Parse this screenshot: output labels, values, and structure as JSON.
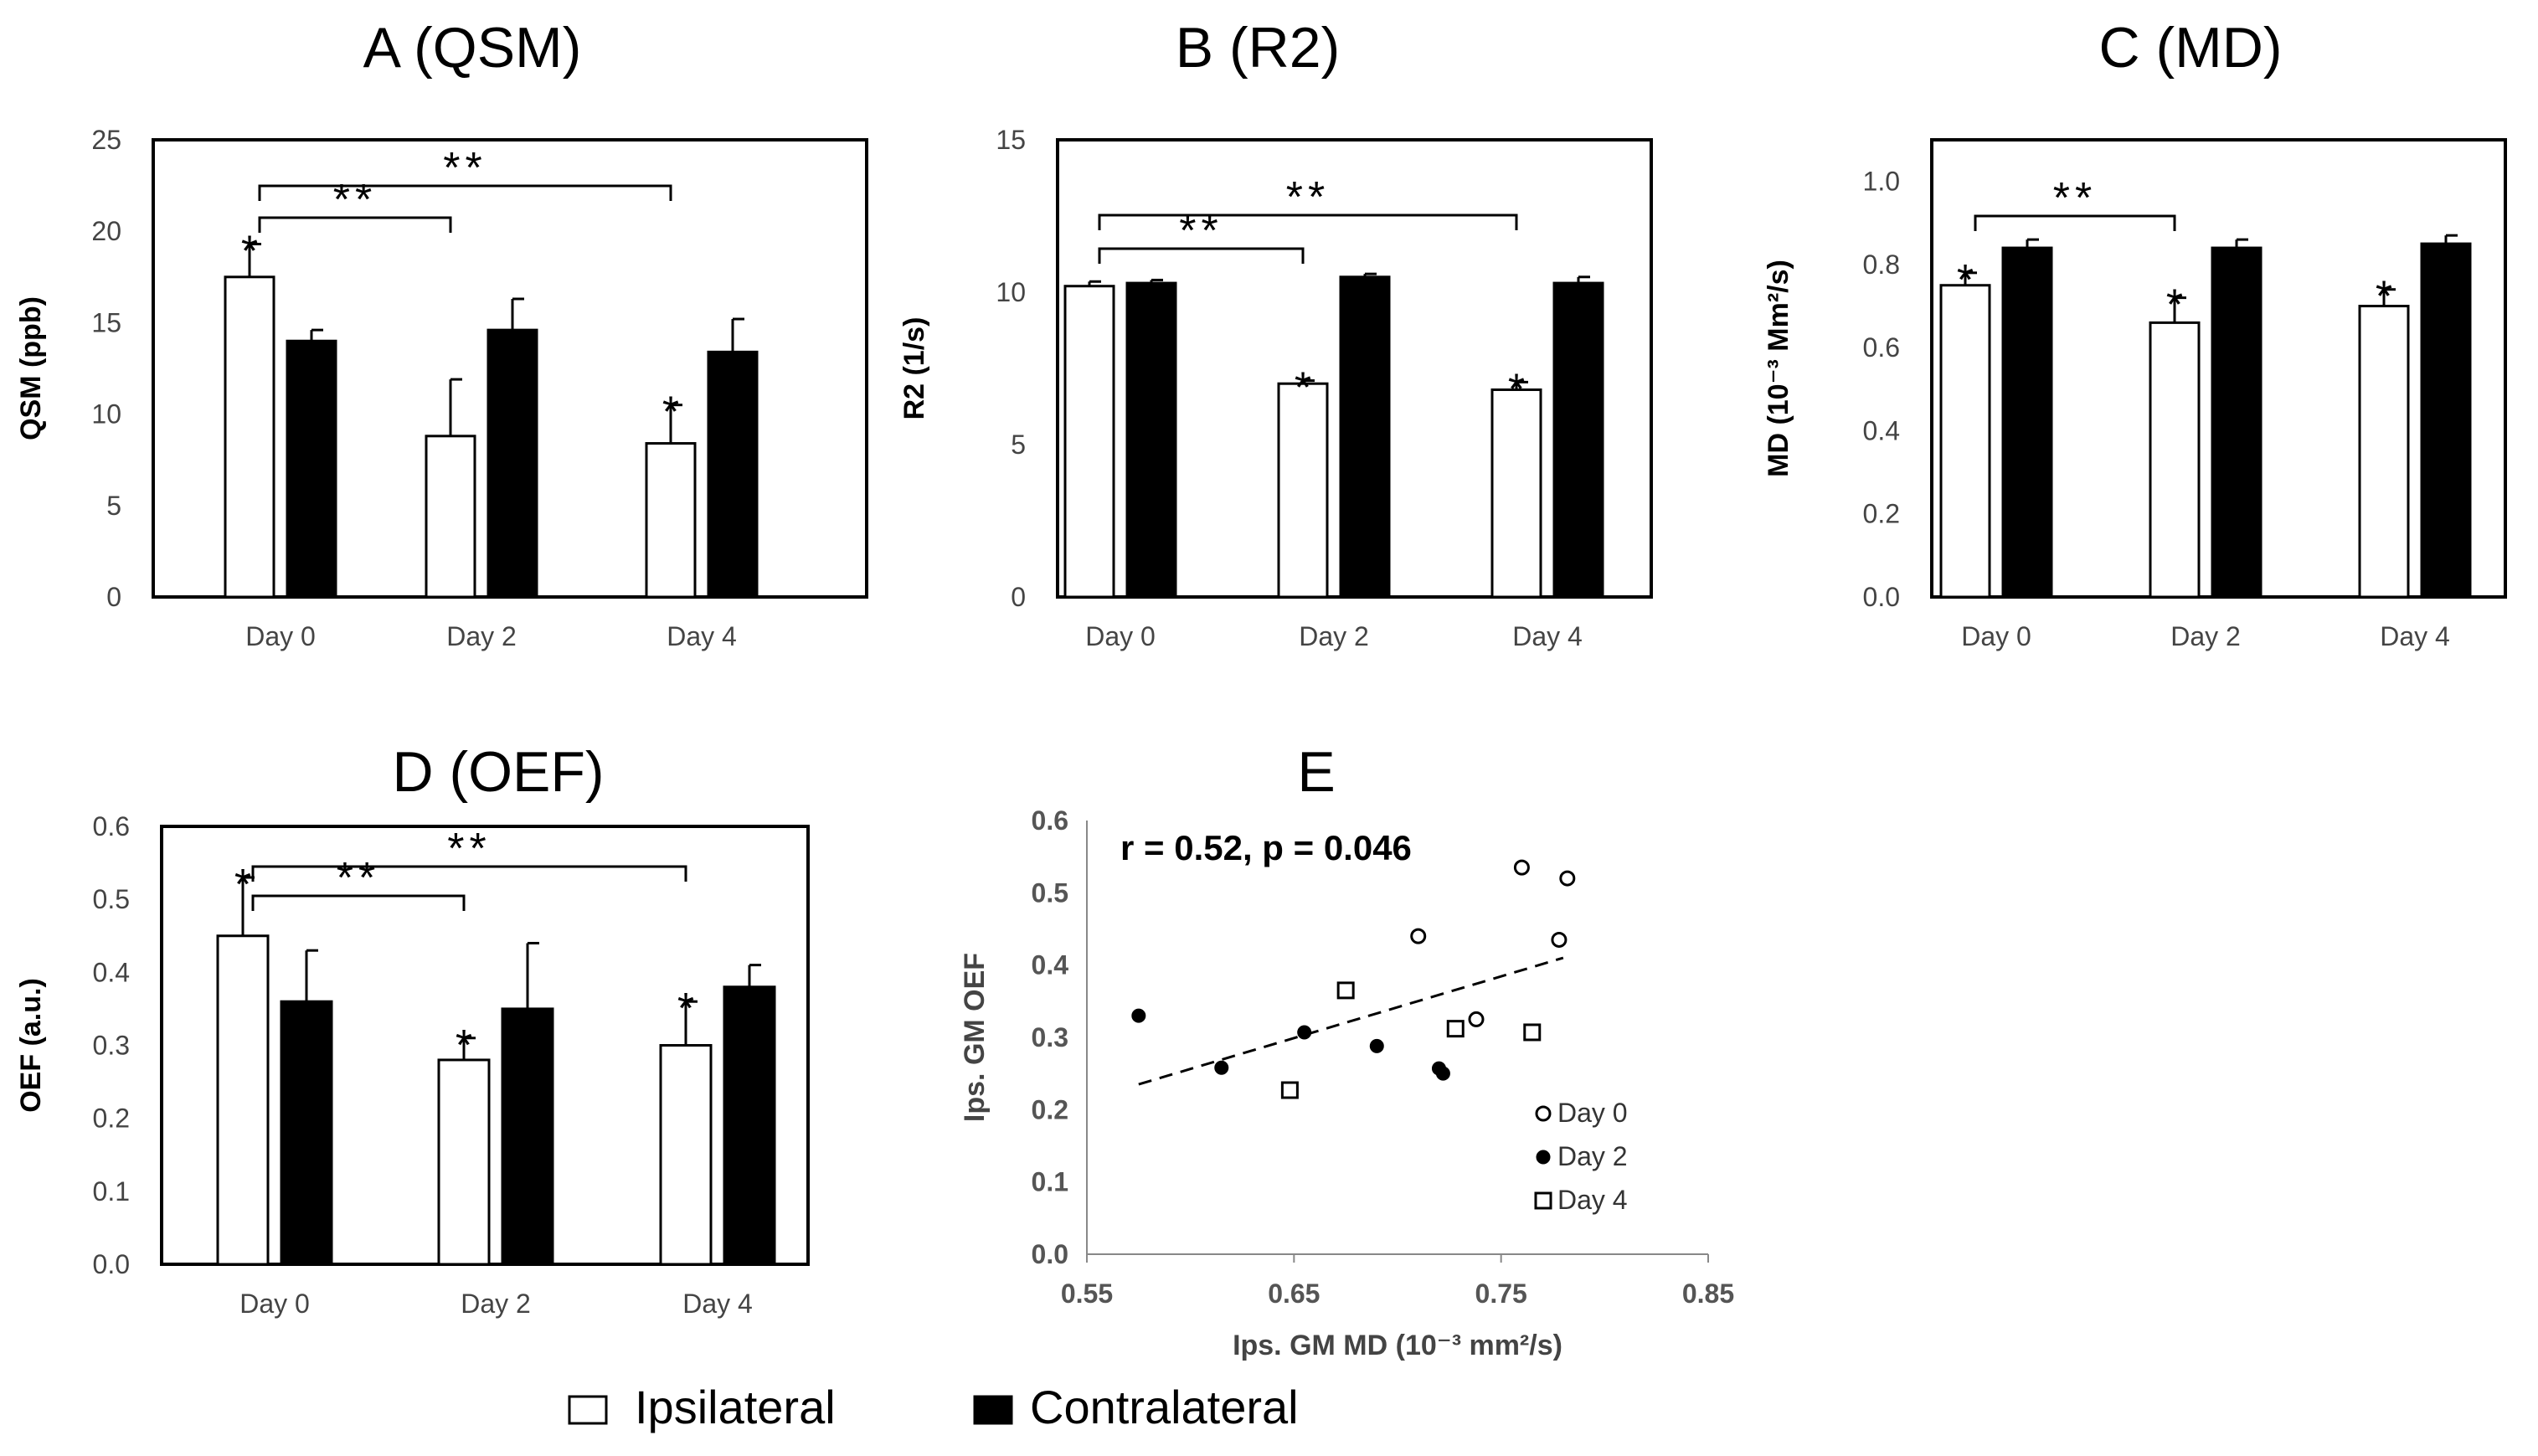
{
  "chart_data": [
    {
      "id": "A",
      "type": "bar",
      "title": "A (QSM)",
      "ylabel": "QSM (ppb)",
      "ylim": [
        0,
        25
      ],
      "yticks": [
        "0",
        "5",
        "10",
        "15",
        "20",
        "25"
      ],
      "categories": [
        "Day 0",
        "Day 2",
        "Day 4"
      ],
      "series": [
        {
          "name": "Ipsilateral",
          "fill": "#ffffff",
          "values": [
            17.5,
            8.8,
            8.4
          ],
          "err": [
            1.8,
            3.1,
            2.1
          ],
          "stars": [
            true,
            false,
            true
          ]
        },
        {
          "name": "Contralateral",
          "fill": "#000000",
          "values": [
            14.0,
            14.6,
            13.4
          ],
          "err": [
            0.6,
            1.7,
            1.8
          ],
          "stars": [
            false,
            false,
            false
          ]
        }
      ],
      "brackets": [
        {
          "from": 0,
          "to": 1,
          "label": "**"
        },
        {
          "from": 0,
          "to": 2,
          "label": "**"
        }
      ]
    },
    {
      "id": "B",
      "type": "bar",
      "title": "B (R2)",
      "ylabel": "R2 (1/s)",
      "ylim": [
        0,
        15
      ],
      "yticks": [
        "0",
        "5",
        "10",
        "15"
      ],
      "categories": [
        "Day 0",
        "Day 2",
        "Day 4"
      ],
      "series": [
        {
          "name": "Ipsilateral",
          "fill": "#ffffff",
          "values": [
            10.2,
            7.0,
            6.8
          ],
          "err": [
            0.15,
            0.1,
            0.25
          ],
          "stars": [
            false,
            true,
            true
          ]
        },
        {
          "name": "Contralateral",
          "fill": "#000000",
          "values": [
            10.3,
            10.5,
            10.3
          ],
          "err": [
            0.1,
            0.1,
            0.2
          ],
          "stars": [
            false,
            false,
            false
          ]
        }
      ],
      "brackets": [
        {
          "from": 0,
          "to": 1,
          "label": "**"
        },
        {
          "from": 0,
          "to": 2,
          "label": "**"
        }
      ]
    },
    {
      "id": "C",
      "type": "bar",
      "title": "C  (MD)",
      "ylabel": "MD (10⁻³ Mm²/s)",
      "ylim": [
        0,
        1.1
      ],
      "yticks": [
        "0.0",
        "0.2",
        "0.4",
        "0.6",
        "0.8",
        "1.0"
      ],
      "categories": [
        "Day 0",
        "Day 2",
        "Day 4"
      ],
      "series": [
        {
          "name": "Ipsilateral",
          "fill": "#ffffff",
          "values": [
            0.75,
            0.66,
            0.7
          ],
          "err": [
            0.03,
            0.06,
            0.04
          ],
          "stars": [
            true,
            true,
            true
          ]
        },
        {
          "name": "Contralateral",
          "fill": "#000000",
          "values": [
            0.84,
            0.84,
            0.85
          ],
          "err": [
            0.02,
            0.02,
            0.02
          ],
          "stars": [
            false,
            false,
            false
          ]
        }
      ],
      "brackets": [
        {
          "from": 0,
          "to": 1,
          "label": "**"
        }
      ]
    },
    {
      "id": "D",
      "type": "bar",
      "title": "D (OEF)",
      "ylabel": "OEF (a.u.)",
      "ylim": [
        0,
        0.6
      ],
      "yticks": [
        "0.0",
        "0.1",
        "0.2",
        "0.3",
        "0.4",
        "0.5",
        "0.6"
      ],
      "categories": [
        "Day 0",
        "Day 2",
        "Day 4"
      ],
      "series": [
        {
          "name": "Ipsilateral",
          "fill": "#ffffff",
          "values": [
            0.45,
            0.28,
            0.3
          ],
          "err": [
            0.08,
            0.03,
            0.06
          ],
          "stars": [
            true,
            true,
            true
          ]
        },
        {
          "name": "Contralateral",
          "fill": "#000000",
          "values": [
            0.36,
            0.35,
            0.38
          ],
          "err": [
            0.07,
            0.09,
            0.03
          ],
          "stars": [
            false,
            false,
            false
          ]
        }
      ],
      "brackets": [
        {
          "from": 0,
          "to": 1,
          "label": "**"
        },
        {
          "from": 0,
          "to": 2,
          "label": "**"
        }
      ]
    },
    {
      "id": "E",
      "type": "scatter",
      "title": "E",
      "xlabel": "Ips. GM MD (10⁻³ mm²/s)",
      "ylabel": "Ips.  GM OEF",
      "xlim": [
        0.55,
        0.85
      ],
      "ylim": [
        0,
        0.6
      ],
      "xticks": [
        "0.55",
        "0.65",
        "0.75",
        "0.85"
      ],
      "yticks": [
        "0.0",
        "0.1",
        "0.2",
        "0.3",
        "0.4",
        "0.5",
        "0.6"
      ],
      "annotation": "r = 0.52, p = 0.046",
      "trendline": {
        "x": [
          0.575,
          0.78
        ],
        "y": [
          0.235,
          0.41
        ]
      },
      "series": [
        {
          "name": "Day 0",
          "marker": "open-circle",
          "points": [
            [
              0.76,
              0.535
            ],
            [
              0.782,
              0.52
            ],
            [
              0.71,
              0.44
            ],
            [
              0.778,
              0.435
            ],
            [
              0.738,
              0.325
            ]
          ]
        },
        {
          "name": "Day 2",
          "marker": "filled-circle",
          "points": [
            [
              0.575,
              0.33
            ],
            [
              0.615,
              0.258
            ],
            [
              0.655,
              0.307
            ],
            [
              0.69,
              0.288
            ],
            [
              0.72,
              0.257
            ],
            [
              0.722,
              0.25
            ]
          ]
        },
        {
          "name": "Day 4",
          "marker": "open-square",
          "points": [
            [
              0.675,
              0.365
            ],
            [
              0.648,
              0.227
            ],
            [
              0.728,
              0.312
            ],
            [
              0.765,
              0.307
            ]
          ]
        }
      ]
    }
  ],
  "legend": {
    "items": [
      {
        "label": "Ipsilateral",
        "fill": "#ffffff"
      },
      {
        "label": "Contralateral",
        "fill": "#000000"
      }
    ]
  }
}
